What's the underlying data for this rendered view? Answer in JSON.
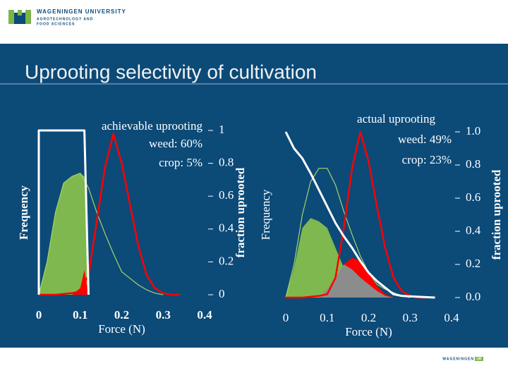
{
  "header": {
    "university": "WAGENINGEN UNIVERSITY",
    "department_line1": "AGROTECHNOLOGY AND",
    "department_line2": "FOOD SCIENCES"
  },
  "title": "Uprooting selectivity of cultivation",
  "footer": [
    "WAGENINGEN",
    "UR"
  ],
  "chart_data": [
    {
      "type": "line",
      "annotations": [
        "achievable uprooting",
        "weed: 60%",
        "crop: 5%"
      ],
      "ylabel": "Frequency",
      "y2label": "fraction uprooted",
      "xlabel": "Force (N)",
      "xlim": [
        0,
        0.4
      ],
      "xticks": [
        0,
        0.1,
        0.2,
        0.3,
        0.4
      ],
      "ylim": [
        0,
        1
      ],
      "yticks": [
        0,
        0.2,
        0.4,
        0.6,
        0.8,
        1
      ],
      "yaxis_position": "right",
      "series": [
        {
          "kind": "area",
          "color": "#7fb84e",
          "x": [
            0,
            0.02,
            0.04,
            0.06,
            0.08,
            0.1,
            0.11,
            0.12
          ],
          "values": [
            0,
            0.2,
            0.5,
            0.68,
            0.72,
            0.74,
            0.72,
            0
          ]
        },
        {
          "kind": "area",
          "color": "#ff0000",
          "x": [
            0.08,
            0.1,
            0.11,
            0.12
          ],
          "values": [
            0,
            0.04,
            0.15,
            0
          ]
        },
        {
          "kind": "line",
          "color": "#a5d46a",
          "x": [
            0,
            0.02,
            0.04,
            0.06,
            0.08,
            0.1,
            0.12,
            0.14,
            0.16,
            0.18,
            0.2,
            0.22,
            0.24,
            0.26,
            0.28,
            0.3
          ],
          "values": [
            0,
            0.2,
            0.5,
            0.68,
            0.72,
            0.74,
            0.65,
            0.5,
            0.37,
            0.25,
            0.14,
            0.1,
            0.06,
            0.03,
            0.01,
            0
          ]
        },
        {
          "kind": "line",
          "color": "#ff0000",
          "x": [
            0,
            0.04,
            0.08,
            0.1,
            0.12,
            0.14,
            0.16,
            0.18,
            0.2,
            0.22,
            0.24,
            0.26,
            0.28,
            0.3,
            0.32,
            0.34
          ],
          "values": [
            0,
            0,
            0.01,
            0.02,
            0.12,
            0.45,
            0.78,
            0.98,
            0.8,
            0.55,
            0.3,
            0.12,
            0.04,
            0.01,
            0,
            0
          ]
        },
        {
          "kind": "line",
          "color": "#ffffff",
          "x": [
            0,
            0,
            0.11,
            0.12
          ],
          "values": [
            0,
            1,
            1,
            0
          ]
        }
      ]
    },
    {
      "type": "line",
      "annotations": [
        "actual uprooting",
        "weed: 49%",
        "crop: 23%"
      ],
      "ylabel": "Frequency",
      "y2label": "fraction uprooted",
      "xlabel": "Force (N)",
      "xlim": [
        0,
        0.4
      ],
      "xticks": [
        0,
        0.1,
        0.2,
        0.3,
        0.4
      ],
      "ylim": [
        0,
        1
      ],
      "yticks": [
        {
          "value": 0,
          "label": "0.0"
        },
        0.2,
        0.4,
        0.6,
        0.8,
        {
          "value": 1,
          "label": "1.0"
        }
      ],
      "yaxis_position": "right",
      "series": [
        {
          "kind": "area",
          "color": "#7fb84e",
          "x": [
            0,
            0.02,
            0.04,
            0.06,
            0.08,
            0.1,
            0.12,
            0.14,
            0.16,
            0.18,
            0.2,
            0.22
          ],
          "values": [
            0,
            0.18,
            0.42,
            0.48,
            0.46,
            0.42,
            0.3,
            0.18,
            0.1,
            0.05,
            0.02,
            0
          ]
        },
        {
          "kind": "area",
          "color": "#ff0000",
          "x": [
            0.1,
            0.12,
            0.14,
            0.16,
            0.18,
            0.2,
            0.22,
            0.24,
            0.26
          ],
          "values": [
            0.01,
            0.06,
            0.2,
            0.24,
            0.22,
            0.15,
            0.07,
            0.02,
            0
          ]
        },
        {
          "kind": "area",
          "color": "#8c8c8c",
          "x": [
            0.08,
            0.1,
            0.12,
            0.14,
            0.16,
            0.18,
            0.2,
            0.22,
            0.24,
            0.26
          ],
          "values": [
            0,
            0.05,
            0.12,
            0.2,
            0.17,
            0.12,
            0.08,
            0.04,
            0.01,
            0
          ]
        },
        {
          "kind": "line",
          "color": "#a5d46a",
          "x": [
            0,
            0.02,
            0.04,
            0.06,
            0.08,
            0.1,
            0.12,
            0.14,
            0.16,
            0.18,
            0.2,
            0.22,
            0.24,
            0.26,
            0.28,
            0.3
          ],
          "values": [
            0,
            0.2,
            0.5,
            0.7,
            0.78,
            0.78,
            0.68,
            0.52,
            0.38,
            0.25,
            0.15,
            0.08,
            0.05,
            0.03,
            0.01,
            0
          ]
        },
        {
          "kind": "line",
          "color": "#ff0000",
          "x": [
            0,
            0.04,
            0.08,
            0.1,
            0.12,
            0.14,
            0.16,
            0.18,
            0.2,
            0.22,
            0.24,
            0.26,
            0.28,
            0.3,
            0.32,
            0.34
          ],
          "values": [
            0,
            0,
            0.01,
            0.02,
            0.12,
            0.42,
            0.78,
            1.0,
            0.82,
            0.55,
            0.3,
            0.12,
            0.04,
            0.01,
            0,
            0
          ]
        },
        {
          "kind": "line",
          "color": "#ffffff",
          "x": [
            0,
            0.02,
            0.04,
            0.06,
            0.08,
            0.1,
            0.12,
            0.14,
            0.16,
            0.18,
            0.2,
            0.22,
            0.24,
            0.26,
            0.28,
            0.32,
            0.36
          ],
          "values": [
            1,
            0.9,
            0.84,
            0.75,
            0.65,
            0.55,
            0.45,
            0.37,
            0.3,
            0.22,
            0.15,
            0.1,
            0.06,
            0.02,
            0.01,
            0.005,
            0
          ]
        }
      ]
    }
  ]
}
